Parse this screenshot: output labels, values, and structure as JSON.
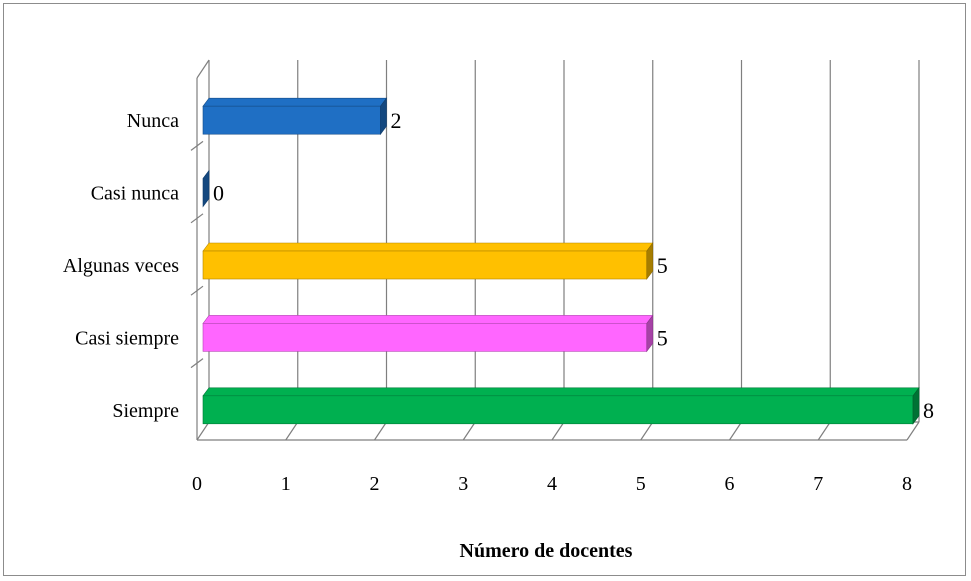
{
  "chart_data": {
    "type": "bar",
    "orientation": "horizontal",
    "three_d": true,
    "categories": [
      "Nunca",
      "Casi nunca",
      "Algunas veces",
      "Casi siempre",
      "Siempre"
    ],
    "values": [
      2,
      0,
      5,
      5,
      8
    ],
    "colors": [
      "#1f6fc4",
      "#1f6fc4",
      "#ffc000",
      "#ff66ff",
      "#00b050"
    ],
    "xlabel": "Número de docentes",
    "xlim": [
      0,
      8
    ],
    "xticks": [
      0,
      1,
      2,
      3,
      4,
      5,
      6,
      7,
      8
    ],
    "grid": true,
    "legend": "none"
  }
}
